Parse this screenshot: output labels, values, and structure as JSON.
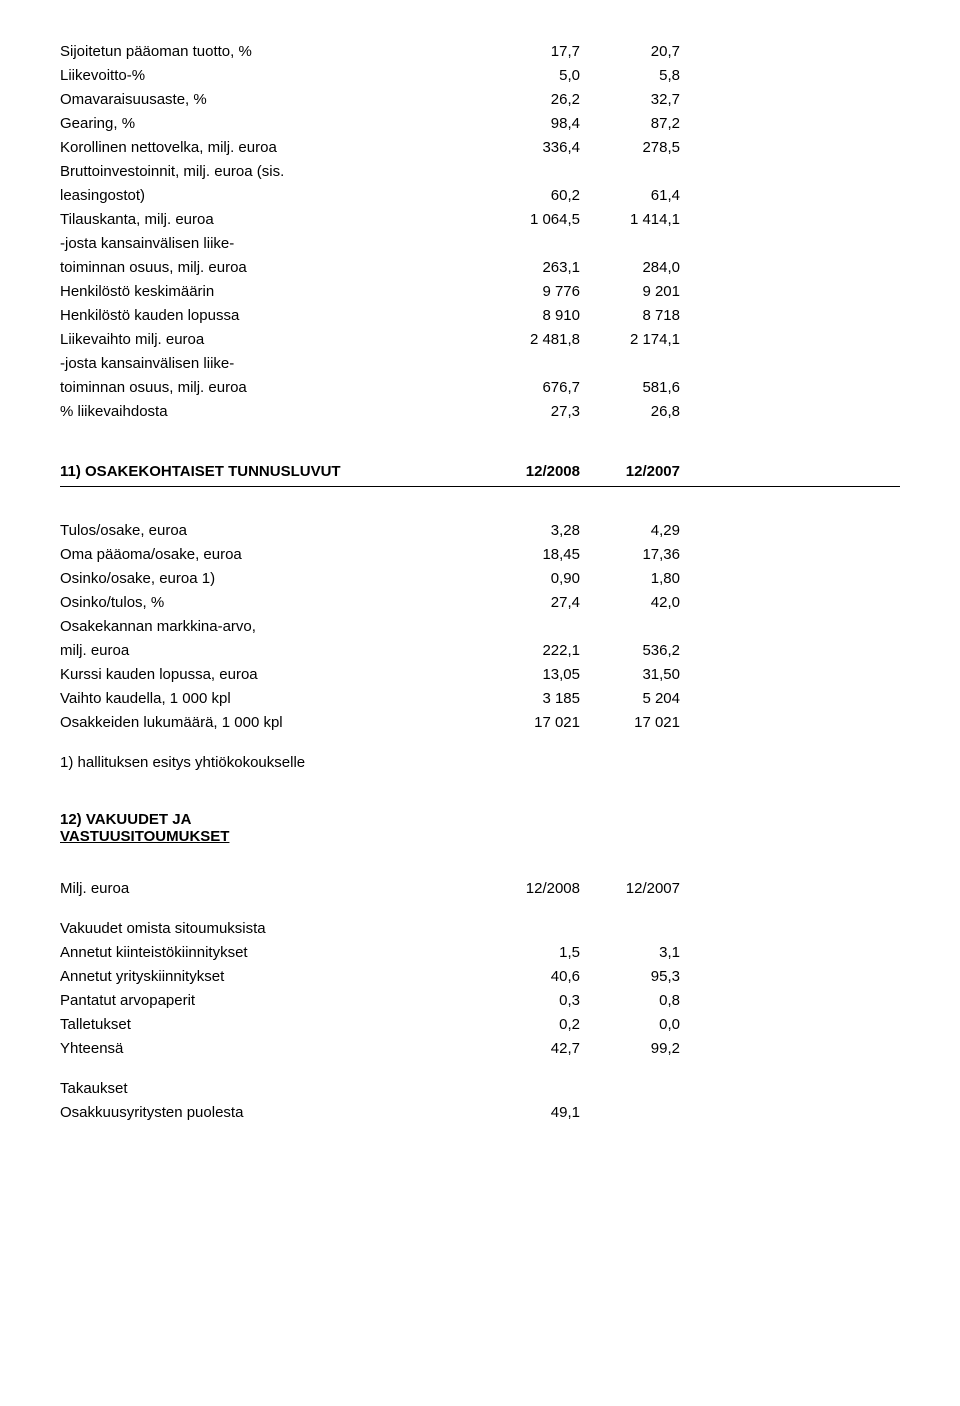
{
  "t1": {
    "rows": [
      {
        "l": "Sijoitetun pääoman tuotto, %",
        "a": "17,7",
        "b": "20,7"
      },
      {
        "l": "Liikevoitto-%",
        "a": "5,0",
        "b": "5,8"
      },
      {
        "l": "Omavaraisuusaste, %",
        "a": "26,2",
        "b": "32,7"
      },
      {
        "l": "Gearing, %",
        "a": "98,4",
        "b": "87,2"
      },
      {
        "l": "Korollinen nettovelka, milj. euroa",
        "a": "336,4",
        "b": "278,5"
      },
      {
        "l": "Bruttoinvestoinnit, milj. euroa (sis.",
        "a": "",
        "b": ""
      },
      {
        "l": "leasingostot)",
        "a": "60,2",
        "b": "61,4"
      },
      {
        "l": "Tilauskanta, milj. euroa",
        "a": "1 064,5",
        "b": "1 414,1"
      },
      {
        "l": "-josta kansainvälisen liike-",
        "a": "",
        "b": ""
      },
      {
        "l": "toiminnan osuus, milj. euroa",
        "a": "263,1",
        "b": "284,0"
      },
      {
        "l": "Henkilöstö keskimäärin",
        "a": "9 776",
        "b": "9 201"
      },
      {
        "l": "Henkilöstö kauden lopussa",
        "a": "8 910",
        "b": "8 718"
      },
      {
        "l": "Liikevaihto milj. euroa",
        "a": "2 481,8",
        "b": "2 174,1"
      },
      {
        "l": "-josta kansainvälisen liike-",
        "a": "",
        "b": ""
      },
      {
        "l": "toiminnan osuus, milj. euroa",
        "a": "676,7",
        "b": "581,6"
      },
      {
        "l": "% liikevaihdosta",
        "a": "27,3",
        "b": "26,8"
      }
    ]
  },
  "s11": {
    "title": "11) OSAKEKOHTAISET TUNNUSLUVUT",
    "h1": "12/2008",
    "h2": "12/2007",
    "rows": [
      {
        "l": "Tulos/osake, euroa",
        "a": "3,28",
        "b": "4,29"
      },
      {
        "l": "Oma pääoma/osake, euroa",
        "a": "18,45",
        "b": "17,36"
      },
      {
        "l": "Osinko/osake, euroa  1)",
        "a": "0,90",
        "b": "1,80"
      },
      {
        "l": "Osinko/tulos, %",
        "a": "27,4",
        "b": "42,0"
      },
      {
        "l": "Osakekannan markkina-arvo,",
        "a": "",
        "b": ""
      },
      {
        "l": "milj. euroa",
        "a": "222,1",
        "b": "536,2"
      },
      {
        "l": "Kurssi kauden lopussa, euroa",
        "a": "13,05",
        "b": "31,50"
      },
      {
        "l": "Vaihto kaudella, 1 000 kpl",
        "a": "3 185",
        "b": "5 204"
      },
      {
        "l": "Osakkeiden lukumäärä, 1 000 kpl",
        "a": "17 021",
        "b": "17 021"
      }
    ],
    "note": "1) hallituksen esitys yhtiökokoukselle"
  },
  "s12": {
    "title1": "12) VAKUUDET JA",
    "title2": "VASTUUSITOUMUKSET",
    "hl": "Milj. euroa",
    "h1": "12/2008",
    "h2": "12/2007",
    "sub1": "Vakuudet omista sitoumuksista",
    "rows": [
      {
        "l": "Annetut kiinteistökiinnitykset",
        "a": "1,5",
        "b": "3,1"
      },
      {
        "l": "Annetut yrityskiinnitykset",
        "a": "40,6",
        "b": "95,3"
      },
      {
        "l": "Pantatut arvopaperit",
        "a": "0,3",
        "b": "0,8"
      },
      {
        "l": "Talletukset",
        "a": "0,2",
        "b": "0,0"
      },
      {
        "l": "Yhteensä",
        "a": "42,7",
        "b": "99,2"
      }
    ],
    "sub2": "Takaukset",
    "rows2": [
      {
        "l": "Osakkuusyritysten puolesta",
        "a": "49,1",
        "b": ""
      }
    ]
  }
}
